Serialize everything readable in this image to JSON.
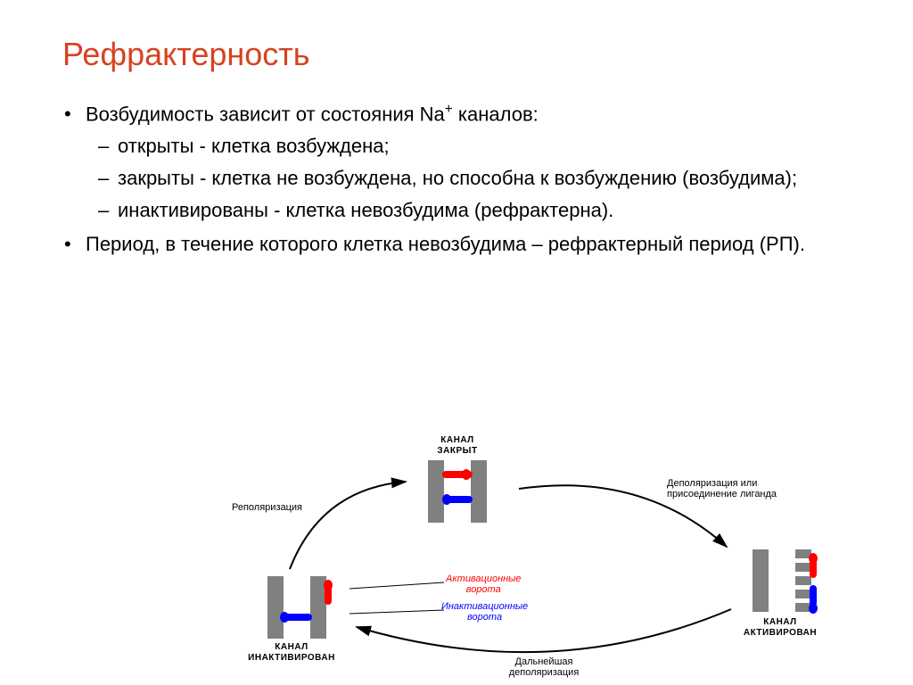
{
  "title": "Рефрактерность",
  "title_color": "#d64320",
  "body_color": "#000000",
  "body_fontsize": 22,
  "bullets": {
    "b1_pre": "Возбудимость зависит от состояния Na",
    "b1_sup": "+",
    "b1_post": " каналов:",
    "b1a": "открыты - клетка возбуждена;",
    "b1b": "закрыты - клетка не возбуждена, но способна к возбуждению (возбудима);",
    "b1c": "инактивированы - клетка невозбудима (рефрактерна).",
    "b2": "Период, в течение которого клетка невозбудима – рефрактерный период (РП)."
  },
  "diagram": {
    "colors": {
      "wall": "#808080",
      "red": "#ff0000",
      "blue": "#0000ff",
      "arrow": "#000000",
      "bg": "#ffffff"
    },
    "state_labels": {
      "closed": "КАНАЛ\nЗАКРЫТ",
      "activated": "КАНАЛ\nАКТИВИРОВАН",
      "inactivated": "КАНАЛ\nИНАКТИВИРОВАН"
    },
    "arrow_labels": {
      "repolar": "Реполяризация",
      "depolar": "Деполяризация или\nприсоединение лиганда",
      "further": "Дальнейшая\nдеполяризация"
    },
    "gate_labels": {
      "activation": "Активационные\nворота",
      "inactivation": "Инактивационные\nворота"
    }
  }
}
